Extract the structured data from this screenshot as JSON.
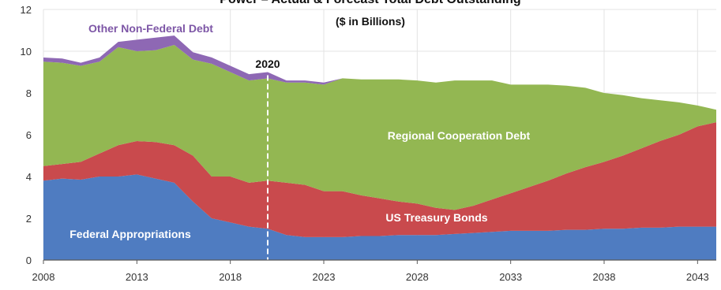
{
  "chart_data": {
    "type": "area",
    "title": "Power – Actual & Forecast Total Debt Outstanding",
    "subtitle": "($ in Billions)",
    "xlim": [
      2008,
      2044
    ],
    "ylim": [
      0,
      12
    ],
    "x_ticks": [
      2008,
      2013,
      2018,
      2023,
      2028,
      2033,
      2038,
      2043
    ],
    "y_ticks": [
      0,
      2,
      4,
      6,
      8,
      10,
      12
    ],
    "grid": true,
    "stacked": true,
    "x": [
      2008,
      2009,
      2010,
      2011,
      2012,
      2013,
      2014,
      2015,
      2016,
      2017,
      2018,
      2019,
      2020,
      2021,
      2022,
      2023,
      2024,
      2025,
      2026,
      2027,
      2028,
      2029,
      2030,
      2031,
      2032,
      2033,
      2034,
      2035,
      2036,
      2037,
      2038,
      2039,
      2040,
      2041,
      2042,
      2043,
      2044
    ],
    "series": [
      {
        "name": "Federal Appropriations",
        "color": "#4f7cc1",
        "values": [
          3.8,
          3.9,
          3.85,
          4.0,
          4.0,
          4.1,
          3.9,
          3.7,
          2.8,
          2.0,
          1.8,
          1.6,
          1.5,
          1.2,
          1.1,
          1.1,
          1.1,
          1.15,
          1.15,
          1.2,
          1.2,
          1.2,
          1.25,
          1.3,
          1.35,
          1.4,
          1.4,
          1.4,
          1.45,
          1.45,
          1.5,
          1.5,
          1.55,
          1.55,
          1.6,
          1.6,
          1.6
        ]
      },
      {
        "name": "US Treasury Bonds",
        "color": "#c94a4d",
        "values": [
          0.7,
          0.7,
          0.85,
          1.1,
          1.5,
          1.6,
          1.75,
          1.8,
          2.2,
          2.0,
          2.2,
          2.1,
          2.3,
          2.5,
          2.5,
          2.2,
          2.2,
          1.95,
          1.8,
          1.6,
          1.5,
          1.3,
          1.15,
          1.3,
          1.55,
          1.8,
          2.1,
          2.4,
          2.7,
          3.0,
          3.2,
          3.5,
          3.8,
          4.15,
          4.4,
          4.8,
          5.0
        ]
      },
      {
        "name": "Regional Cooperation Debt",
        "color": "#93b752",
        "values": [
          5.0,
          4.85,
          4.6,
          4.4,
          4.7,
          4.3,
          4.4,
          4.8,
          4.6,
          5.4,
          5.0,
          4.9,
          4.9,
          4.8,
          4.9,
          5.1,
          5.4,
          5.55,
          5.7,
          5.85,
          5.9,
          6.0,
          6.2,
          6.0,
          5.7,
          5.2,
          4.9,
          4.6,
          4.2,
          3.8,
          3.3,
          2.9,
          2.4,
          1.95,
          1.55,
          1.0,
          0.6
        ]
      },
      {
        "name": "Other Non-Federal Debt",
        "color": "#8e68b4",
        "values": [
          0.2,
          0.2,
          0.15,
          0.2,
          0.25,
          0.55,
          0.6,
          0.45,
          0.35,
          0.3,
          0.3,
          0.3,
          0.3,
          0.1,
          0.1,
          0.1,
          0.0,
          0.0,
          0.0,
          0.0,
          0.0,
          0.0,
          0.0,
          0.0,
          0.0,
          0.0,
          0.0,
          0.0,
          0.0,
          0.0,
          0.0,
          0.0,
          0.0,
          0.0,
          0.0,
          0.0,
          0.0
        ]
      }
    ],
    "annotations": [
      {
        "text": "2020",
        "x": 2020
      }
    ],
    "marker_line_x": 2020,
    "axis_color": "#5a5a5a",
    "grid_color": "#e3e3e3"
  }
}
